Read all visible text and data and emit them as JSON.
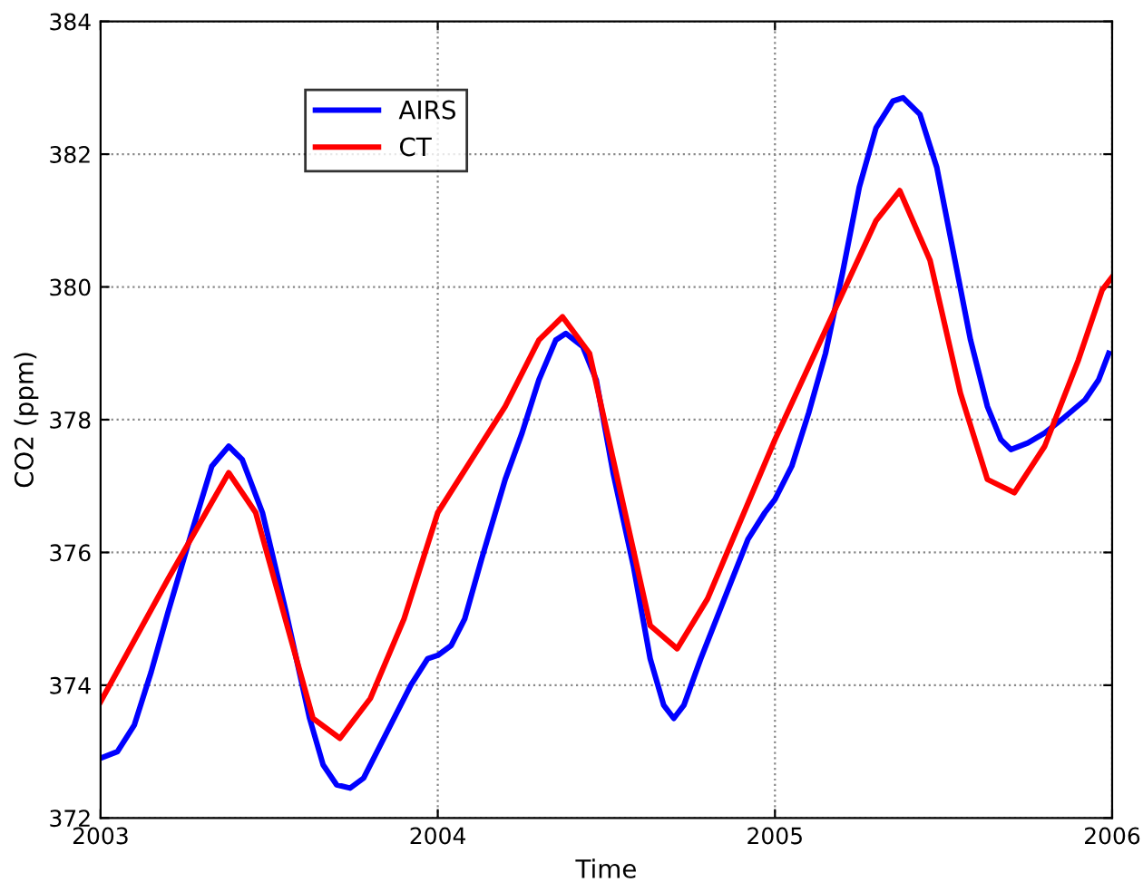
{
  "chart_data": {
    "type": "line",
    "xlabel": "Time",
    "ylabel": "CO2 (ppm)",
    "xlim": [
      2003,
      2006
    ],
    "xticks": [
      2003,
      2004,
      2005,
      2006
    ],
    "ylim": [
      372,
      384
    ],
    "yticks": [
      372,
      374,
      376,
      378,
      380,
      382,
      384
    ],
    "grid": true,
    "legend": "top left",
    "marker": "none",
    "line_style": "solid",
    "series": [
      {
        "name": "AIRS",
        "color": "#0000ff",
        "x": [
          2003.0,
          2003.05,
          2003.1,
          2003.15,
          2003.2,
          2003.27,
          2003.33,
          2003.38,
          2003.42,
          2003.48,
          2003.55,
          2003.62,
          2003.66,
          2003.7,
          2003.74,
          2003.78,
          2003.85,
          2003.92,
          2003.97,
          2004.0,
          2004.04,
          2004.08,
          2004.13,
          2004.2,
          2004.25,
          2004.3,
          2004.35,
          2004.38,
          2004.43,
          2004.47,
          2004.52,
          2004.58,
          2004.63,
          2004.67,
          2004.7,
          2004.73,
          2004.78,
          2004.85,
          2004.92,
          2004.97,
          2005.0,
          2005.05,
          2005.1,
          2005.15,
          2005.2,
          2005.25,
          2005.3,
          2005.35,
          2005.38,
          2005.43,
          2005.48,
          2005.53,
          2005.58,
          2005.63,
          2005.67,
          2005.7,
          2005.75,
          2005.8,
          2005.85,
          2005.92,
          2005.96,
          2005.99
        ],
        "values": [
          372.9,
          373.0,
          373.4,
          374.2,
          375.1,
          376.3,
          377.3,
          377.6,
          377.4,
          376.6,
          375.1,
          373.5,
          372.8,
          372.5,
          372.45,
          372.6,
          373.3,
          374.0,
          374.4,
          374.45,
          374.6,
          375.0,
          375.9,
          377.1,
          377.8,
          378.6,
          379.2,
          379.3,
          379.1,
          378.6,
          377.2,
          375.8,
          374.4,
          373.7,
          373.5,
          373.7,
          374.4,
          375.3,
          376.2,
          376.6,
          376.8,
          377.3,
          378.1,
          379.0,
          380.2,
          381.5,
          382.4,
          382.8,
          382.85,
          382.6,
          381.8,
          380.5,
          379.2,
          378.2,
          377.7,
          377.55,
          377.65,
          377.8,
          378.0,
          378.3,
          378.6,
          379.0
        ]
      },
      {
        "name": "CT",
        "color": "#ff0000",
        "x": [
          2003.0,
          2003.2,
          2003.38,
          2003.46,
          2003.63,
          2003.71,
          2003.8,
          2003.9,
          2004.0,
          2004.2,
          2004.3,
          2004.37,
          2004.45,
          2004.63,
          2004.71,
          2004.8,
          2004.9,
          2005.0,
          2005.2,
          2005.3,
          2005.37,
          2005.46,
          2005.55,
          2005.63,
          2005.71,
          2005.8,
          2005.9,
          2005.97,
          2006.0
        ],
        "values": [
          373.75,
          375.6,
          377.2,
          376.6,
          373.5,
          373.2,
          373.8,
          375.0,
          376.6,
          378.2,
          379.2,
          379.55,
          379.0,
          374.9,
          374.55,
          375.3,
          376.5,
          377.7,
          379.9,
          381.0,
          381.45,
          380.4,
          378.4,
          377.1,
          376.9,
          377.6,
          378.9,
          379.95,
          380.15
        ]
      }
    ]
  }
}
